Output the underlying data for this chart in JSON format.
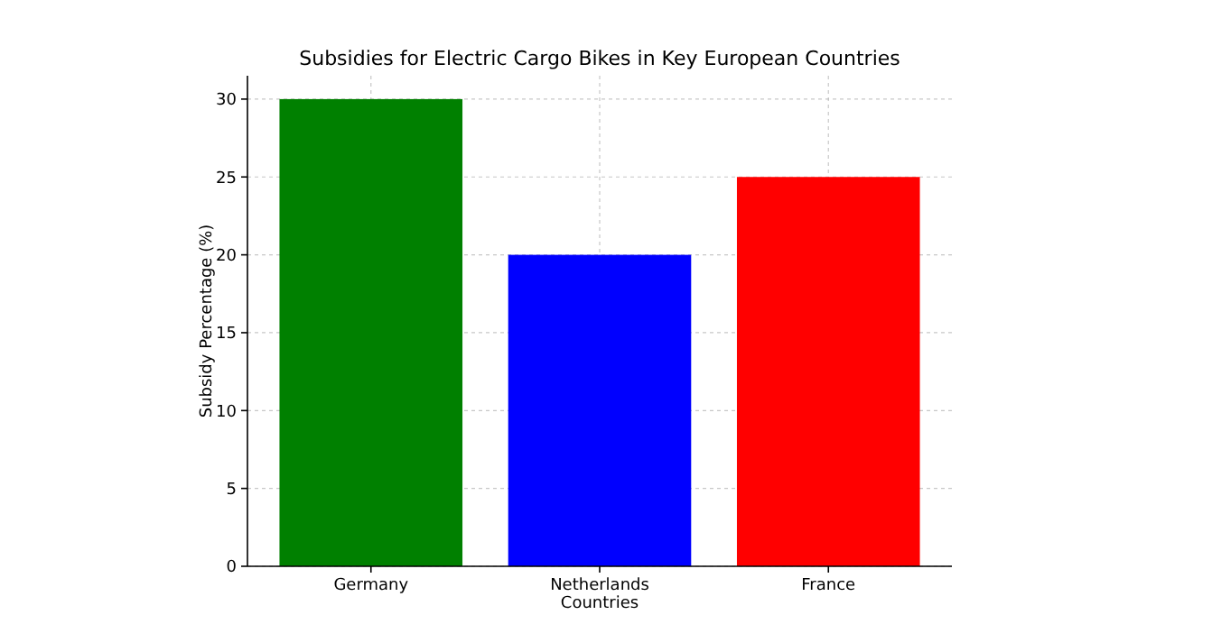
{
  "chart_data": {
    "type": "bar",
    "title": "Subsidies for Electric Cargo Bikes in Key European Countries",
    "xlabel": "Countries",
    "ylabel": "Subsidy Percentage (%)",
    "categories": [
      "Germany",
      "Netherlands",
      "France"
    ],
    "values": [
      30,
      20,
      25
    ],
    "colors": [
      "#008000",
      "#0000ff",
      "#ff0000"
    ],
    "ylim": [
      0,
      31.5
    ],
    "yticks": [
      0,
      5,
      10,
      15,
      20,
      25,
      30
    ],
    "grid": true
  }
}
